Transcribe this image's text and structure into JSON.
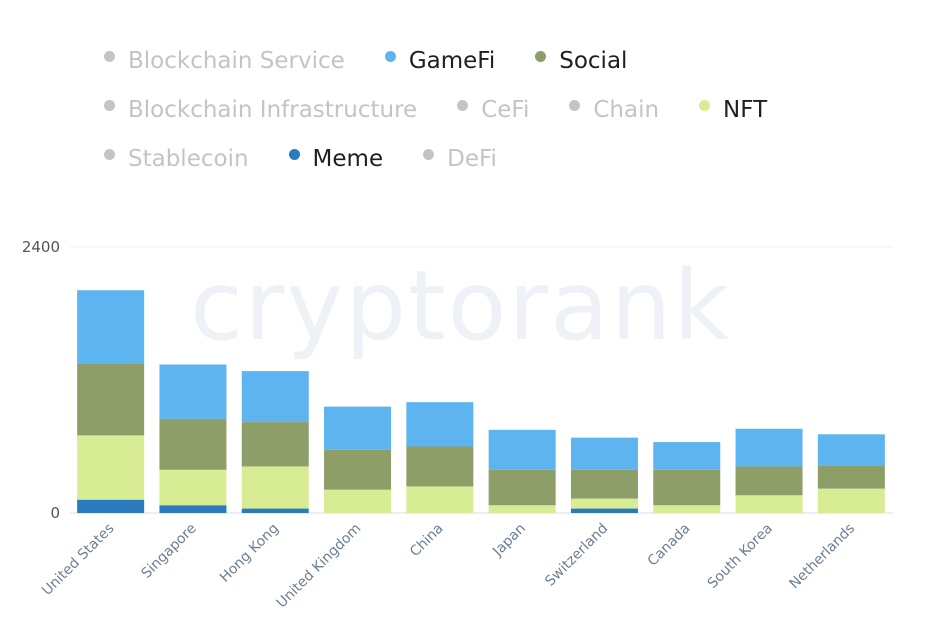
{
  "legend": [
    [
      {
        "name": "Blockchain Service",
        "color": "#c4c4c4",
        "active": false
      },
      {
        "name": "GameFi",
        "color": "#5db4ee",
        "active": true
      },
      {
        "name": "Social",
        "color": "#8e9e68",
        "active": true
      }
    ],
    [
      {
        "name": "Blockchain Infrastructure",
        "color": "#c4c4c4",
        "active": false
      },
      {
        "name": "CeFi",
        "color": "#c4c4c4",
        "active": false
      },
      {
        "name": "Chain",
        "color": "#c4c4c4",
        "active": false
      },
      {
        "name": "NFT",
        "color": "#d8ec93",
        "active": true
      }
    ],
    [
      {
        "name": "Stablecoin",
        "color": "#c4c4c4",
        "active": false
      },
      {
        "name": "Meme",
        "color": "#2a7bbd",
        "active": true
      },
      {
        "name": "DeFi",
        "color": "#c4c4c4",
        "active": false
      }
    ]
  ],
  "watermark": "cryptorank",
  "chart_data": {
    "type": "bar",
    "stacked": true,
    "categories": [
      "United States",
      "Singapore",
      "Hong Kong",
      "United Kingdom",
      "China",
      "Japan",
      "Switzerland",
      "Canada",
      "South Korea",
      "Netherlands"
    ],
    "series": [
      {
        "name": "Meme",
        "color": "#2a7bbd",
        "values": [
          120,
          70,
          40,
          0,
          0,
          0,
          40,
          0,
          0,
          0
        ]
      },
      {
        "name": "NFT",
        "color": "#d8ec93",
        "values": [
          580,
          320,
          380,
          210,
          240,
          70,
          90,
          70,
          160,
          220
        ]
      },
      {
        "name": "Social",
        "color": "#8e9e68",
        "values": [
          650,
          460,
          400,
          360,
          360,
          320,
          260,
          320,
          260,
          210
        ]
      },
      {
        "name": "GameFi",
        "color": "#5db4ee",
        "values": [
          660,
          490,
          460,
          390,
          400,
          360,
          290,
          250,
          340,
          280
        ]
      }
    ],
    "yticks": [
      0,
      2400
    ],
    "ylim": [
      0,
      2400
    ],
    "grid": true
  }
}
